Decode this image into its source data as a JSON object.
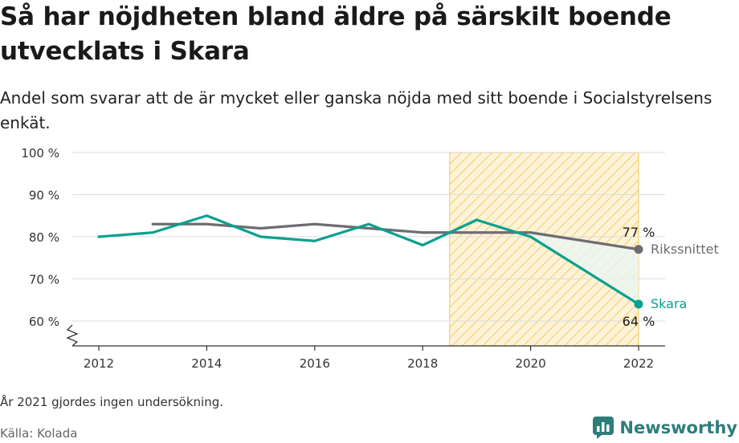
{
  "header": {
    "title": "Så har nöjdheten bland äldre på särskilt boende utvecklats i Skara",
    "subtitle": "Andel som svarar att de är mycket eller ganska nöjda med sitt boende i Socialstyrelsens enkät."
  },
  "footer": {
    "note": "År 2021 gjordes ingen undersökning.",
    "source": "Källa: Kolada",
    "brand": "Newsworthy"
  },
  "colors": {
    "skara": "#0aa08f",
    "riks": "#6e6c72",
    "highlight_stroke": "#f5cf72",
    "highlight_fill": "#fdf3d8",
    "grid": "#dddddd",
    "brand": "#2e7d7a"
  },
  "chart_data": {
    "type": "line",
    "x_ticks": [
      2012,
      2014,
      2016,
      2018,
      2020,
      2022
    ],
    "y_ticks": [
      "60 %",
      "70 %",
      "80 %",
      "90 %",
      "100 %"
    ],
    "y_tick_values": [
      60,
      70,
      80,
      90,
      100
    ],
    "ylim": [
      55,
      100
    ],
    "xlim": [
      2011.5,
      2022.5
    ],
    "axis_break": true,
    "highlight_range": [
      2018.5,
      2022
    ],
    "series": [
      {
        "name": "Skara",
        "color": "#0aa08f",
        "x": [
          2012,
          2013,
          2014,
          2015,
          2016,
          2017,
          2018,
          2019,
          2020,
          2022
        ],
        "values": [
          80,
          81,
          85,
          80,
          79,
          83,
          78,
          84,
          80,
          64
        ],
        "end_label": "64 %"
      },
      {
        "name": "Rikssnittet",
        "color": "#6e6c72",
        "x": [
          2013,
          2014,
          2015,
          2016,
          2017,
          2018,
          2019,
          2020,
          2022
        ],
        "values": [
          83,
          83,
          82,
          83,
          82,
          81,
          81,
          81,
          77
        ],
        "end_label": "77 %"
      }
    ]
  }
}
